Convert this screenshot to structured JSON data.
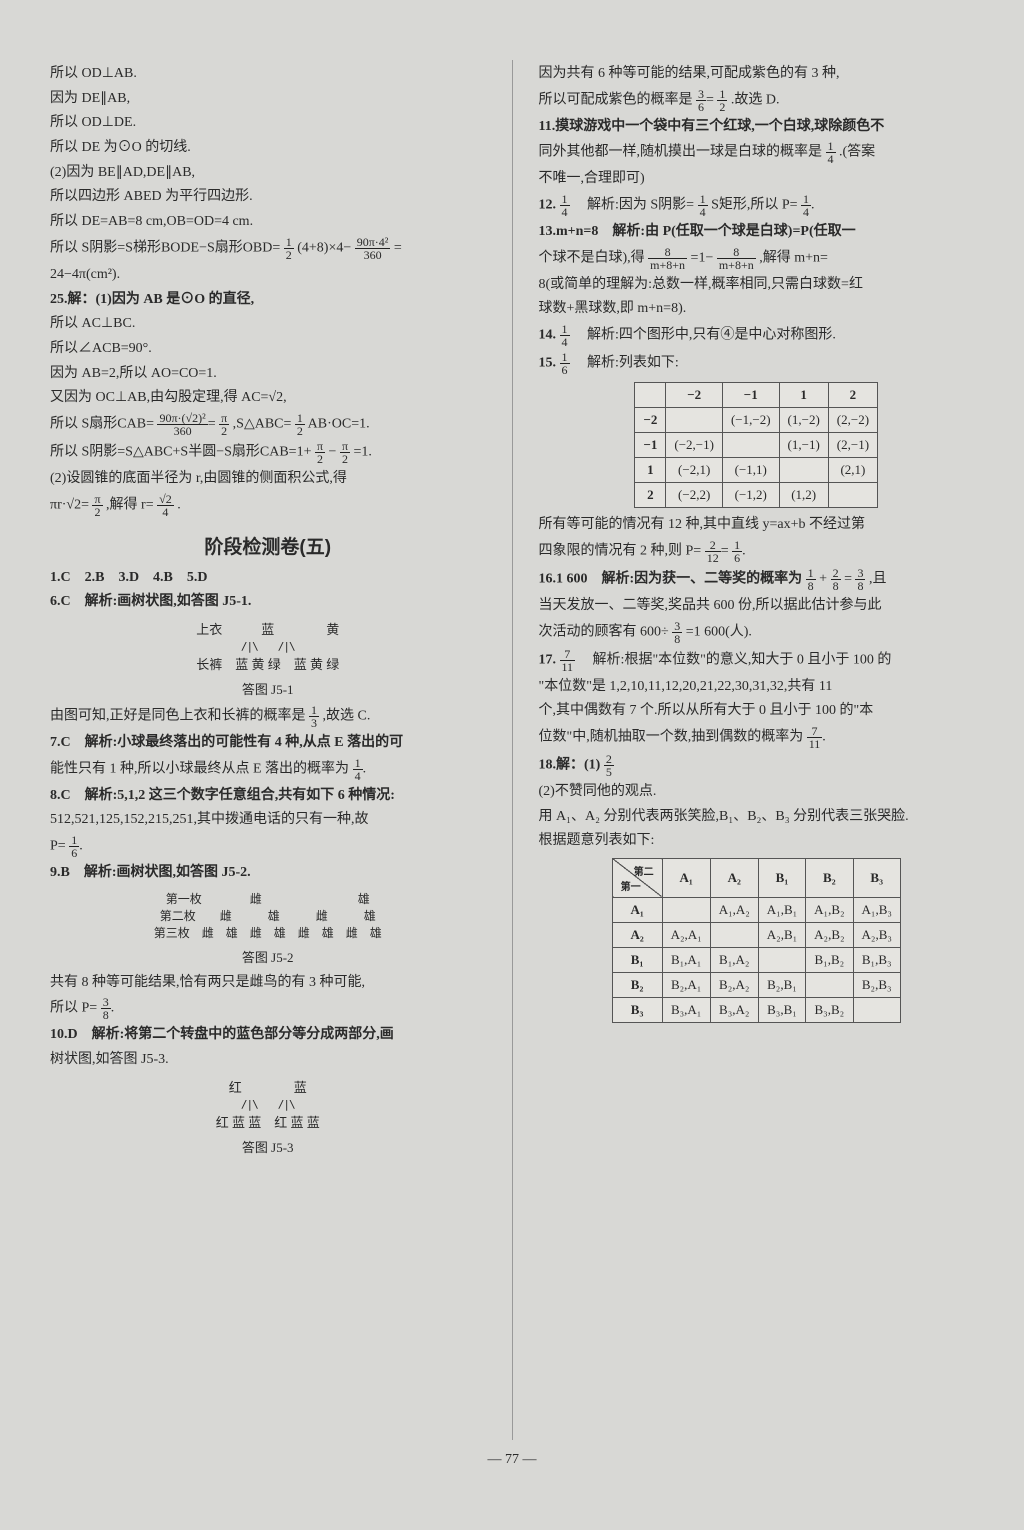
{
  "left": {
    "l1": "所以 OD⊥AB.",
    "l2": "因为 DE∥AB,",
    "l3": "所以 OD⊥DE.",
    "l4": "所以 DE 为⊙O 的切线.",
    "l5": "(2)因为 BE∥AD,DE∥AB,",
    "l6": "所以四边形 ABED 为平行四边形.",
    "l7": "所以 DE=AB=8 cm,OB=OD=4 cm.",
    "l8a": "所以 S阴影=S梯形BODE−S扇形OBD=",
    "l8b": "(4+8)×4−",
    "l8c": "=",
    "l9": "24−4π(cm²).",
    "q25": "25.解：(1)因为 AB 是⊙O 的直径,",
    "l10": "所以 AC⊥BC.",
    "l11": "所以∠ACB=90°.",
    "l12": "因为 AB=2,所以 AO=CO=1.",
    "l13": "又因为 OC⊥AB,由勾股定理,得 AC=√2,",
    "l14a": "所以 S扇形CAB=",
    "l14b": ",S△ABC=",
    "l14c": "AB·OC=1.",
    "l15a": "所以 S阴影=S△ABC+S半圆−S扇形CAB=1+",
    "l15b": "−",
    "l15c": "=1.",
    "l16": "(2)设圆锥的底面半径为 r,由圆锥的侧面积公式,得",
    "l17a": "πr·√2=",
    "l17b": ",解得 r=",
    "l17c": ".",
    "title": "阶段检测卷(五)",
    "a1": "1.C　2.B　3.D　4.B　5.D",
    "a6": "6.C　解析:画树状图,如答图 J5-1.",
    "tree1_top": "上衣　　　蓝　　　　黄",
    "tree1_b1": "/|\\　　/|\\",
    "tree1_bot": "长裤　蓝 黄 绿　蓝 黄 绿",
    "tree1_cap": "答图 J5-1",
    "a6e": "由图可知,正好是同色上衣和长裤的概率是",
    "a6e2": ",故选 C.",
    "a7a": "7.C　解析:小球最终落出的可能性有 4 种,从点 E 落出的可",
    "a7b": "能性只有 1 种,所以小球最终从点 E 落出的概率为",
    "a8a": "8.C　解析:5,1,2 这三个数字任意组合,共有如下 6 种情况:",
    "a8b": "512,521,125,152,215,251,其中拨通电话的只有一种,故",
    "a8c": "P=",
    "a9": "9.B　解析:画树状图,如答图 J5-2.",
    "t2a": "第一枚　　　　雌　　　　　　　　雄",
    "t2b": "第二枚　　雌　　　雄　　　雌　　　雄",
    "t2c": "第三枚　雌　雄　雌　雄　雌　雄　雌　雄",
    "t2cap": "答图 J5-2",
    "a9b": "共有 8 种等可能结果,恰有两只是雌鸟的有 3 种可能,",
    "a9c": "所以 P=",
    "a10a": "10.D　解析:将第二个转盘中的蓝色部分等分成两部分,画",
    "a10b": "树状图,如答图 J5-3.",
    "t3a": "红　　　　蓝",
    "t3b": "/|\\　　/|\\",
    "t3c": "红 蓝 蓝　红 蓝 蓝",
    "t3cap": "答图 J5-3"
  },
  "right": {
    "r1": "因为共有 6 种等可能的结果,可配成紫色的有 3 种,",
    "r2a": "所以可配成紫色的概率是",
    "r2b": ".故选 D.",
    "r3a": "11.摸球游戏中一个袋中有三个红球,一个白球,球除颜色不",
    "r3b": "同外其他都一样,随机摸出一球是白球的概率是",
    "r3c": ".(答案",
    "r3d": "不唯一,合理即可)",
    "r4a": "12.",
    "r4b": "　解析:因为 S阴影=",
    "r4c": "S矩形,所以 P=",
    "r5a": "13.m+n=8　解析:由 P(任取一个球是白球)=P(任取一",
    "r5b": "个球不是白球),得",
    "r5c": "=1−",
    "r5d": ",解得 m+n=",
    "r5e": "8(或简单的理解为:总数一样,概率相同,只需白球数=红",
    "r5f": "球数+黑球数,即 m+n=8).",
    "r6a": "14.",
    "r6b": "　解析:四个图形中,只有④是中心对称图形.",
    "r7a": "15.",
    "r7b": "　解析:列表如下:",
    "r8a": "所有等可能的情况有 12 种,其中直线 y=ax+b 不经过第",
    "r8b": "四象限的情况有 2 种,则 P=",
    "r9a": "16.1 600　解析:因为获一、二等奖的概率为",
    "r9b": "+",
    "r9c": "=",
    "r9d": ",且",
    "r9e": "当天发放一、二等奖,奖品共 600 份,所以据此估计参与此",
    "r9f": "次活动的顾客有 600÷",
    "r9g": "=1 600(人).",
    "r10a": "17.",
    "r10b": "　解析:根据\"本位数\"的意义,知大于 0 且小于 100 的",
    "r10c": "\"本位数\"是 1,2,10,11,12,20,21,22,30,31,32,共有 11",
    "r10d": "个,其中偶数有 7 个.所以从所有大于 0 且小于 100 的\"本",
    "r10e": "位数\"中,随机抽取一个数,抽到偶数的概率为",
    "r11a": "18.解：(1)",
    "r12a": "(2)不赞同他的观点.",
    "r12b": "用 A₁、A₂ 分别代表两张笑脸,B₁、B₂、B₃ 分别代表三张哭脸.",
    "r12c": "根据题意列表如下:"
  },
  "table1": {
    "h": [
      "",
      "−2",
      "−1",
      "1",
      "2"
    ],
    "rows": [
      [
        "−2",
        "",
        "(−1,−2)",
        "(1,−2)",
        "(2,−2)"
      ],
      [
        "−1",
        "(−2,−1)",
        "",
        "(1,−1)",
        "(2,−1)"
      ],
      [
        "1",
        "(−2,1)",
        "(−1,1)",
        "",
        "(2,1)"
      ],
      [
        "2",
        "(−2,2)",
        "(−1,2)",
        "(1,2)",
        ""
      ]
    ]
  },
  "table2": {
    "diag_top": "第二张",
    "diag_bot": "第一张",
    "h": [
      "A₁",
      "A₂",
      "B₁",
      "B₂",
      "B₃"
    ],
    "rows": [
      [
        "A₁",
        "",
        "A₁,A₂",
        "A₁,B₁",
        "A₁,B₂",
        "A₁,B₃"
      ],
      [
        "A₂",
        "A₂,A₁",
        "",
        "A₂,B₁",
        "A₂,B₂",
        "A₂,B₃"
      ],
      [
        "B₁",
        "B₁,A₁",
        "B₁,A₂",
        "",
        "B₁,B₂",
        "B₁,B₃"
      ],
      [
        "B₂",
        "B₂,A₁",
        "B₂,A₂",
        "B₂,B₁",
        "",
        "B₂,B₃"
      ],
      [
        "B₃",
        "B₃,A₁",
        "B₃,A₂",
        "B₃,B₁",
        "B₃,B₂",
        ""
      ]
    ]
  },
  "page": "— 77 —"
}
